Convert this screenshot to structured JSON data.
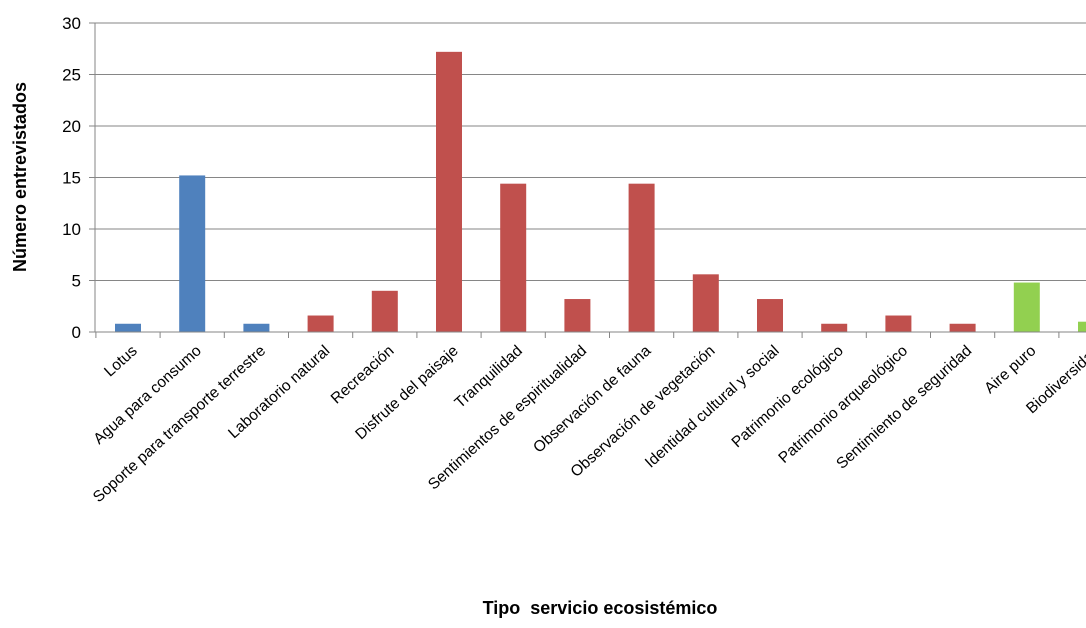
{
  "chart_data": {
    "type": "bar",
    "title": "",
    "xlabel": "Tipo  servicio ecosistémico",
    "ylabel": "Número  entrevistados",
    "ylim": [
      0,
      30
    ],
    "yticks": [
      0,
      5,
      10,
      15,
      20,
      25,
      30
    ],
    "grid": true,
    "legend": "none",
    "categories": [
      "Lotus",
      "Agua para consumo",
      "Soporte para transporte terrestre",
      "Laboratorio natural",
      "Recreación",
      "Disfrute del paisaje",
      "Tranquilidad",
      "Sentimientos de espiritualidad",
      "Observación de fauna",
      "Observación de vegetación",
      "Identidad cultural y social",
      "Patrimonio ecológico",
      "Patrimonio arqueológico",
      "Sentimiento de seguridad",
      "Aire puro",
      "Biodiversidad"
    ],
    "values": [
      0.8,
      15.2,
      0.8,
      1.6,
      4.0,
      27.2,
      14.4,
      3.2,
      14.4,
      5.6,
      3.2,
      0.8,
      1.6,
      0.8,
      4.8,
      1.0
    ],
    "colors": [
      "#4f81bd",
      "#4f81bd",
      "#4f81bd",
      "#c0504d",
      "#c0504d",
      "#c0504d",
      "#c0504d",
      "#c0504d",
      "#c0504d",
      "#c0504d",
      "#c0504d",
      "#c0504d",
      "#c0504d",
      "#c0504d",
      "#92d050",
      "#92d050"
    ]
  }
}
